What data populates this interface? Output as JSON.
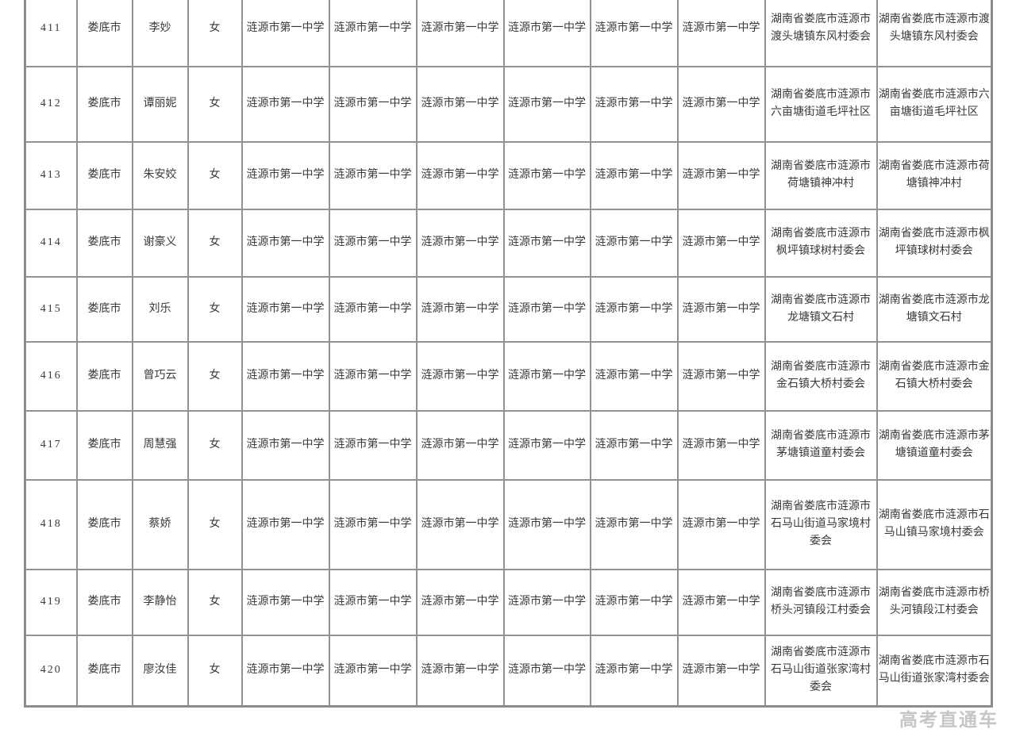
{
  "watermark": {
    "text": "高考直通车"
  },
  "colors": {
    "table_border": "#8c8c8c",
    "cell_border": "#929292",
    "text": "#3a3a3a",
    "watermark": "#c6c6c6",
    "background": "#ffffff"
  },
  "table": {
    "rows": [
      {
        "seq": "411",
        "city": "娄底市",
        "name": "李妙",
        "gender": "女",
        "schools": [
          "涟源市第一中学",
          "涟源市第一中学",
          "涟源市第一中学",
          "涟源市第一中学",
          "涟源市第一中学",
          "涟源市第一中学"
        ],
        "address1": "湖南省娄底市涟源市渡头塘镇东风村委会",
        "address2": "湖南省娄底市涟源市渡头塘镇东风村委会"
      },
      {
        "seq": "412",
        "city": "娄底市",
        "name": "谭丽妮",
        "gender": "女",
        "schools": [
          "涟源市第一中学",
          "涟源市第一中学",
          "涟源市第一中学",
          "涟源市第一中学",
          "涟源市第一中学",
          "涟源市第一中学"
        ],
        "address1": "湖南省娄底市涟源市六亩塘街道毛坪社区",
        "address2": "湖南省娄底市涟源市六亩塘街道毛坪社区"
      },
      {
        "seq": "413",
        "city": "娄底市",
        "name": "朱安姣",
        "gender": "女",
        "schools": [
          "涟源市第一中学",
          "涟源市第一中学",
          "涟源市第一中学",
          "涟源市第一中学",
          "涟源市第一中学",
          "涟源市第一中学"
        ],
        "address1": "湖南省娄底市涟源市荷塘镇神冲村",
        "address2": "湖南省娄底市涟源市荷塘镇神冲村"
      },
      {
        "seq": "414",
        "city": "娄底市",
        "name": "谢豪义",
        "gender": "女",
        "schools": [
          "涟源市第一中学",
          "涟源市第一中学",
          "涟源市第一中学",
          "涟源市第一中学",
          "涟源市第一中学",
          "涟源市第一中学"
        ],
        "address1": "湖南省娄底市涟源市枫坪镇球树村委会",
        "address2": "湖南省娄底市涟源市枫坪镇球树村委会"
      },
      {
        "seq": "415",
        "city": "娄底市",
        "name": "刘乐",
        "gender": "女",
        "schools": [
          "涟源市第一中学",
          "涟源市第一中学",
          "涟源市第一中学",
          "涟源市第一中学",
          "涟源市第一中学",
          "涟源市第一中学"
        ],
        "address1": "湖南省娄底市涟源市龙塘镇文石村",
        "address2": "湖南省娄底市涟源市龙塘镇文石村"
      },
      {
        "seq": "416",
        "city": "娄底市",
        "name": "曾巧云",
        "gender": "女",
        "schools": [
          "涟源市第一中学",
          "涟源市第一中学",
          "涟源市第一中学",
          "涟源市第一中学",
          "涟源市第一中学",
          "涟源市第一中学"
        ],
        "address1": "湖南省娄底市涟源市金石镇大桥村委会",
        "address2": "湖南省娄底市涟源市金石镇大桥村委会"
      },
      {
        "seq": "417",
        "city": "娄底市",
        "name": "周慧强",
        "gender": "女",
        "schools": [
          "涟源市第一中学",
          "涟源市第一中学",
          "涟源市第一中学",
          "涟源市第一中学",
          "涟源市第一中学",
          "涟源市第一中学"
        ],
        "address1": "湖南省娄底市涟源市茅塘镇道童村委会",
        "address2": "湖南省娄底市涟源市茅塘镇道童村委会"
      },
      {
        "seq": "418",
        "city": "娄底市",
        "name": "蔡娇",
        "gender": "女",
        "schools": [
          "涟源市第一中学",
          "涟源市第一中学",
          "涟源市第一中学",
          "涟源市第一中学",
          "涟源市第一中学",
          "涟源市第一中学"
        ],
        "address1": "湖南省娄底市涟源市石马山街道马家境村委会",
        "address2": "湖南省娄底市涟源市石马山镇马家境村委会"
      },
      {
        "seq": "419",
        "city": "娄底市",
        "name": "李静怡",
        "gender": "女",
        "schools": [
          "涟源市第一中学",
          "涟源市第一中学",
          "涟源市第一中学",
          "涟源市第一中学",
          "涟源市第一中学",
          "涟源市第一中学"
        ],
        "address1": "湖南省娄底市涟源市桥头河镇段江村委会",
        "address2": "湖南省娄底市涟源市桥头河镇段江村委会"
      },
      {
        "seq": "420",
        "city": "娄底市",
        "name": "廖汝佳",
        "gender": "女",
        "schools": [
          "涟源市第一中学",
          "涟源市第一中学",
          "涟源市第一中学",
          "涟源市第一中学",
          "涟源市第一中学",
          "涟源市第一中学"
        ],
        "address1": "湖南省娄底市涟源市石马山街道张家湾村委会",
        "address2": "湖南省娄底市涟源市石马山街道张家湾村委会"
      }
    ]
  }
}
